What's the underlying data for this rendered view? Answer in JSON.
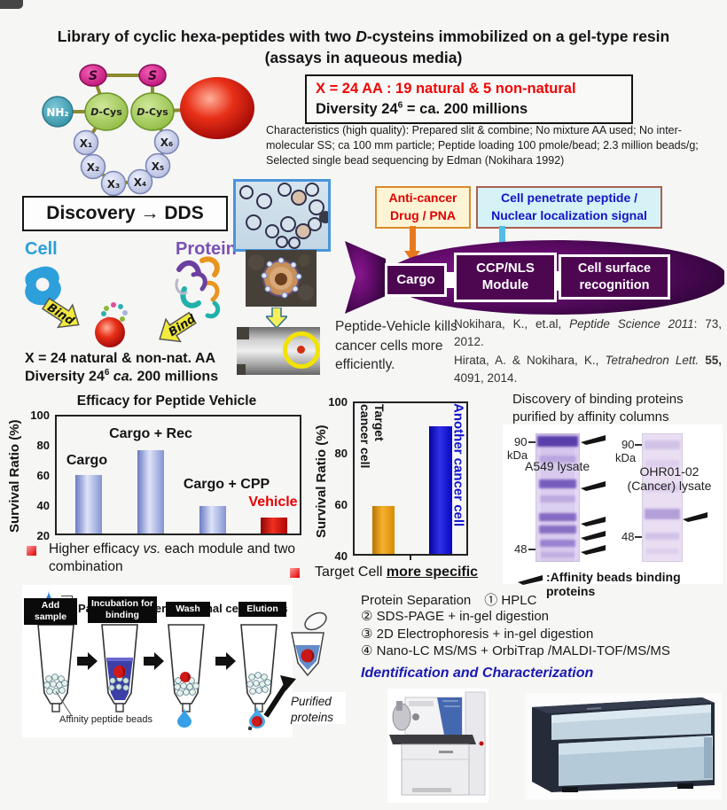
{
  "colors": {
    "accent_red": "#e80000",
    "deep_purple": "#4d0751",
    "bar_blue": "#7e8ed0",
    "bar_red": "#cc0000",
    "bar_orange": "#e89400",
    "bar_navy": "#0808cc",
    "cell_blue": "#2aa0d8",
    "protein_purple": "#7a50b4",
    "heading_blue": "#1818b0"
  },
  "header": {
    "title_pre": "Library of cyclic hexa-peptides with two ",
    "title_em": "D",
    "title_post": "-cysteins immobilized on a gel-type resin",
    "subtitle": "(assays in aqueous media)"
  },
  "library_box": {
    "line1": "X = 24 AA : 19 natural & 5 non-natural",
    "line2_pre": "Diversity 24",
    "line2_sup": "6",
    "line2_post": " = ca. 200 millions"
  },
  "characteristics": "Characteristics (high quality): Prepared slit & combine; No mixture AA used; No inter-molecular SS; ca 100 mm particle; Peptide loading 100 pmole/bead; 2.3 million beads/g; Selected single bead sequencing by Edman (Nokihara 1992)",
  "molecule": {
    "nh2": "NH₂",
    "s_left": "S",
    "s_right": "S",
    "dcys_em": "D",
    "dcys_rest": "-Cys",
    "x": [
      "X₁",
      "X₂",
      "X₃",
      "X₄",
      "X₅",
      "X₆"
    ]
  },
  "discovery": {
    "label": "Discovery → DDS"
  },
  "bind_diagram": {
    "cell": "Cell",
    "protein": "Protein",
    "bind": "Bind",
    "caption1": "X = 24 natural & non-nat. AA",
    "caption2_pre": "Diversity 24",
    "caption2_sup": "6",
    "caption2_em": " ca.",
    "caption2_post": " 200 millions"
  },
  "vehicle": {
    "anticancer_line1": "Anti-cancer",
    "anticancer_line2": "Drug / PNA",
    "cpp_line1": "Cell penetrate peptide /",
    "cpp_line2": "Nuclear localization signal",
    "cargo": "Cargo",
    "module_line1": "CCP/NLS",
    "module_line2": "Module",
    "surface_line1": "Cell surface",
    "surface_line2": "recognition",
    "kills": "Peptide-Vehicle kills cancer cells more efficiently.",
    "ref1_pre": "Nokihara, K., et.al, ",
    "ref1_em": "Peptide Science 2011",
    "ref1_post": ": 73, 2012.",
    "ref2_pre": "Hirata, A. & Nokihara, K., ",
    "ref2_em": "Tetrahedron Lett.",
    "ref2_bold": " 55,",
    "ref2_post": " 4091, 2014."
  },
  "chart_data": [
    {
      "type": "bar",
      "title": "Efficacy for Peptide Vehicle",
      "ylabel": "Survival Ratio (%)",
      "categories": [
        "Cargo",
        "Cargo + Rec",
        "Cargo + CPP",
        "Vehicle"
      ],
      "values": [
        60,
        77,
        39,
        31
      ],
      "ylim": [
        20,
        100
      ],
      "yticks": [
        "100",
        "80",
        "60",
        "40",
        "20"
      ],
      "bar_colors": [
        "#7e8ed0",
        "#7e8ed0",
        "#7e8ed0",
        "#cc0000"
      ],
      "label_colors": [
        "#141414",
        "#141414",
        "#141414",
        "#e80000"
      ],
      "grid": false,
      "note_pre": "Higher efficacy ",
      "note_em": "vs.",
      "note_post": " each module and two combination"
    },
    {
      "type": "bar",
      "title": "",
      "ylabel": "Survival Ratio (%)",
      "categories": [
        "Target cancer cell",
        "Another cancer cell"
      ],
      "cat1_line1": "Target",
      "cat1_line2": "cancer cell",
      "cat2": "Another cancer cell",
      "values": [
        59,
        91
      ],
      "ylim": [
        40,
        100
      ],
      "yticks": [
        "100",
        "80",
        "60",
        "40"
      ],
      "bar_colors": [
        "#e89400",
        "#0808cc"
      ],
      "grid": false,
      "note_pre": "Target Cell ",
      "note_u": "more specific"
    }
  ],
  "binding_panel": {
    "title": "Discovery of binding proteins purified by affinity columns",
    "gel1_label": "A549 lysate",
    "gel2_label_line1": "OHR01-02",
    "gel2_label_line2": "(Cancer) lysate",
    "marker_90": "90",
    "marker_48": "48",
    "kda": "kDa",
    "legend": ":Affinity beads binding proteins"
  },
  "procedure": {
    "lysate": "Patient's cancer or normal cell-lysates",
    "steps": [
      "Add sample",
      "Incubation for binding",
      "Wash",
      "Elution"
    ],
    "beads": "Affinity peptide beads",
    "purified": "Purified proteins"
  },
  "separation": {
    "line1": "Protein Separation　① HPLC",
    "line2": "② SDS-PAGE + in-gel digestion",
    "line3": "③ 2D Electrophoresis + in-gel digestion",
    "line4": "④ Nano-LC MS/MS + OrbiTrap /MALDI-TOF/MS/MS",
    "heading": "Identification and Characterization"
  }
}
